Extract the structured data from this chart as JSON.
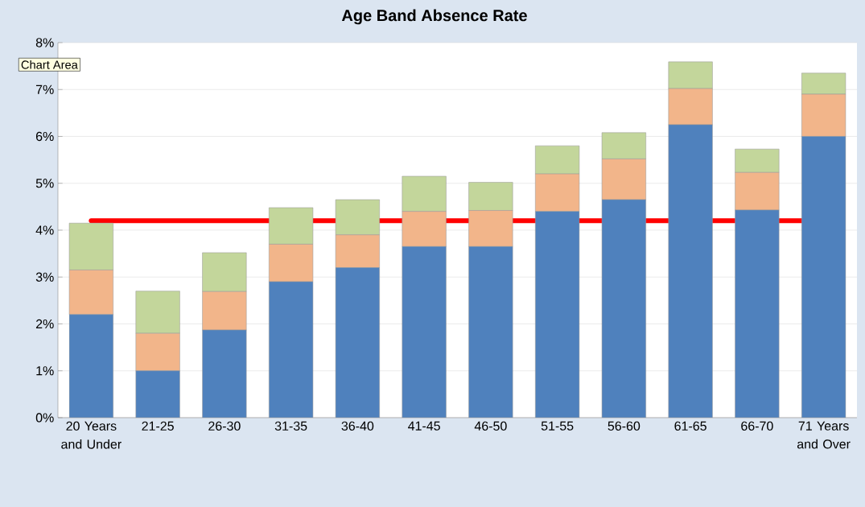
{
  "chart_data": {
    "type": "bar",
    "title": "Age Band Absence Rate",
    "stacked": true,
    "categories": [
      "20 Years and Under",
      "21-25",
      "26-30",
      "31-35",
      "36-40",
      "41-45",
      "46-50",
      "51-55",
      "56-60",
      "61-65",
      "66-70",
      "71 Years and Over"
    ],
    "series": [
      {
        "color": "#4f81bd",
        "values": [
          2.2,
          1.0,
          1.87,
          2.9,
          3.2,
          3.65,
          3.65,
          4.4,
          4.65,
          6.25,
          4.43,
          6.0
        ]
      },
      {
        "color": "#f2b58a",
        "values": [
          0.95,
          0.8,
          0.82,
          0.8,
          0.7,
          0.75,
          0.77,
          0.8,
          0.87,
          0.77,
          0.8,
          0.9
        ]
      },
      {
        "color": "#c3d69b",
        "values": [
          1.0,
          0.9,
          0.83,
          0.78,
          0.75,
          0.75,
          0.6,
          0.6,
          0.56,
          0.57,
          0.5,
          0.45
        ]
      }
    ],
    "ylim": [
      0,
      8
    ],
    "yticks": [
      {
        "value": 0,
        "label": "0%"
      },
      {
        "value": 1,
        "label": "1%"
      },
      {
        "value": 2,
        "label": "2%"
      },
      {
        "value": 3,
        "label": "3%"
      },
      {
        "value": 4,
        "label": "4%"
      },
      {
        "value": 5,
        "label": "5%"
      },
      {
        "value": 6,
        "label": "6%"
      },
      {
        "value": 7,
        "label": "7%"
      },
      {
        "value": 8,
        "label": "8%"
      }
    ],
    "grid": "y",
    "ref_lines": [
      {
        "axis": "y",
        "value": 4.2,
        "color": "#ff0000"
      }
    ],
    "annotations": [
      "Chart Area"
    ]
  }
}
